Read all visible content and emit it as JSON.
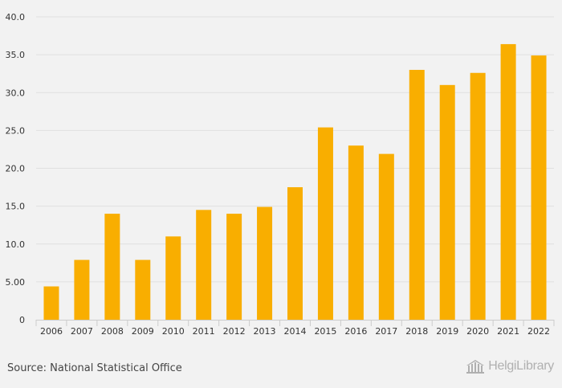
{
  "chart_data": {
    "type": "bar",
    "categories": [
      "2006",
      "2007",
      "2008",
      "2009",
      "2010",
      "2011",
      "2012",
      "2013",
      "2014",
      "2015",
      "2016",
      "2017",
      "2018",
      "2019",
      "2020",
      "2021",
      "2022"
    ],
    "values": [
      4.4,
      7.9,
      14.0,
      7.9,
      11.0,
      14.5,
      14.0,
      14.9,
      17.5,
      25.4,
      23.0,
      21.9,
      33.0,
      31.0,
      32.6,
      36.4,
      34.9
    ],
    "title": "",
    "xlabel": "",
    "ylabel": "",
    "ylim": [
      0,
      40
    ],
    "yticks": [
      "0",
      "5.00",
      "10.0",
      "15.0",
      "20.0",
      "25.0",
      "30.0",
      "35.0",
      "40.0"
    ],
    "grid": true,
    "legend": "none",
    "bar_color": "#f9ae00"
  },
  "footer": {
    "source": "Source: National Statistical Office",
    "logo_text": "HelgiLibrary"
  },
  "colors": {
    "background": "#f2f2f2",
    "gridline": "#e0e0e0",
    "axis": "#cccccc"
  }
}
